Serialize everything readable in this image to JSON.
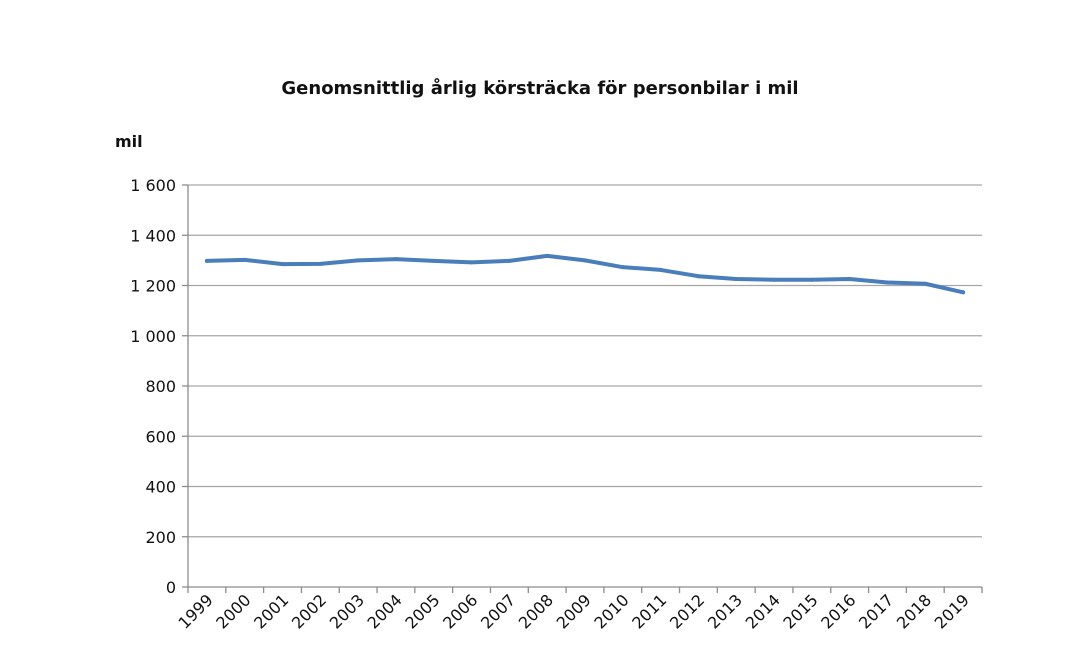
{
  "chart_data": {
    "type": "line",
    "title": "Genomsnittlig årlig körsträcka för personbilar i mil",
    "ylabel": "mil",
    "xlabel": "",
    "categories": [
      "1999",
      "2000",
      "2001",
      "2002",
      "2003",
      "2004",
      "2005",
      "2006",
      "2007",
      "2008",
      "2009",
      "2010",
      "2011",
      "2012",
      "2013",
      "2014",
      "2015",
      "2016",
      "2017",
      "2018",
      "2019"
    ],
    "series": [
      {
        "values": [
          1298,
          1302,
          1285,
          1286,
          1300,
          1305,
          1298,
          1292,
          1298,
          1318,
          1300,
          1273,
          1262,
          1237,
          1226,
          1223,
          1223,
          1226,
          1212,
          1207,
          1173
        ]
      }
    ],
    "ylim": [
      0,
      1600
    ],
    "yticks": [
      0,
      200,
      400,
      600,
      800,
      1000,
      1200,
      1400,
      1600
    ],
    "ytick_labels": [
      "0",
      "200",
      "400",
      "600",
      "800",
      "1 000",
      "1 200",
      "1 400",
      "1 600"
    ],
    "grid": true,
    "line_color": "#4a7ebb"
  }
}
